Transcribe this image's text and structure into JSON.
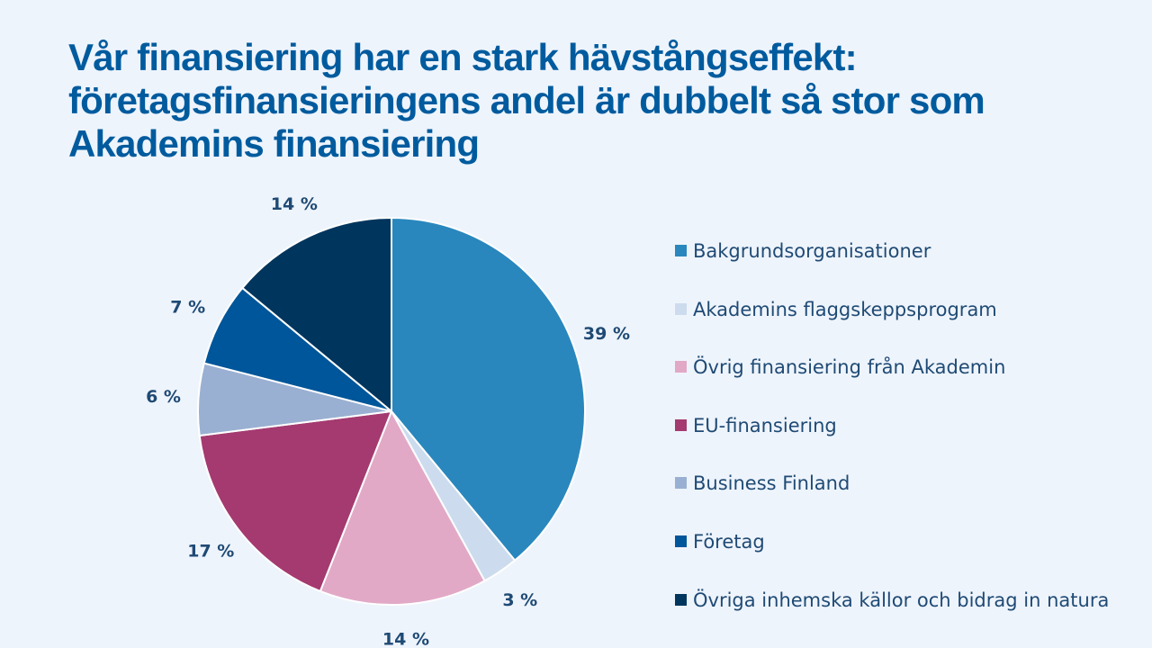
{
  "title": {
    "lines": [
      "Vår finansiering har en stark hävstångseffekt:",
      "företagsfinansieringens andel är dubbelt så stor som",
      "Akademins finansiering"
    ]
  },
  "colors": {
    "title": "#005b9e",
    "label": "#1f4a74",
    "background": "#eef4fc"
  },
  "chart_data": {
    "type": "pie",
    "title": "Vår finansiering har en stark hävstångseffekt: företagsfinansieringens andel är dubbelt så stor som Akademins finansiering",
    "legend_position": "right",
    "start": "12 o'clock",
    "direction": "clockwise",
    "slices": [
      {
        "name": "Bakgrundsorganisationer",
        "value": 39,
        "label": "39 %",
        "color": "#2987bd"
      },
      {
        "name": "Akademins flaggskeppsprogram",
        "value": 3,
        "label": "3 %",
        "color": "#ccdcee"
      },
      {
        "name": "Övrig finansiering från Akademin",
        "value": 14,
        "label": "14 %",
        "color": "#e2a9c7"
      },
      {
        "name": "EU-finansiering",
        "value": 17,
        "label": "17 %",
        "color": "#a43a70"
      },
      {
        "name": "Business Finland",
        "value": 6,
        "label": "6 %",
        "color": "#9ab0d2"
      },
      {
        "name": "Företag",
        "value": 7,
        "label": "7 %",
        "color": "#00569a"
      },
      {
        "name": "Övriga inhemska källor och bidrag in natura",
        "value": 14,
        "label": "14 %",
        "color": "#00355d"
      }
    ]
  }
}
